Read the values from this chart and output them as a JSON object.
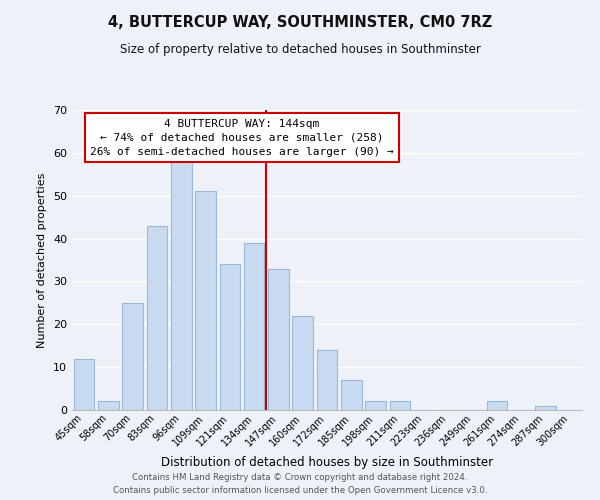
{
  "title": "4, BUTTERCUP WAY, SOUTHMINSTER, CM0 7RZ",
  "subtitle": "Size of property relative to detached houses in Southminster",
  "xlabel": "Distribution of detached houses by size in Southminster",
  "ylabel": "Number of detached properties",
  "bar_color": "#c8daf0",
  "bar_edge_color": "#9ab8d8",
  "categories": [
    "45sqm",
    "58sqm",
    "70sqm",
    "83sqm",
    "96sqm",
    "109sqm",
    "121sqm",
    "134sqm",
    "147sqm",
    "160sqm",
    "172sqm",
    "185sqm",
    "198sqm",
    "211sqm",
    "223sqm",
    "236sqm",
    "249sqm",
    "261sqm",
    "274sqm",
    "287sqm",
    "300sqm"
  ],
  "values": [
    12,
    2,
    25,
    43,
    58,
    51,
    34,
    39,
    33,
    22,
    14,
    7,
    2,
    2,
    0,
    0,
    0,
    2,
    0,
    1,
    0
  ],
  "vline_color": "#cc0000",
  "annotation_title": "4 BUTTERCUP WAY: 144sqm",
  "annotation_line1": "← 74% of detached houses are smaller (258)",
  "annotation_line2": "26% of semi-detached houses are larger (90) →",
  "annotation_box_color": "#ffffff",
  "annotation_box_edge": "#cc0000",
  "ylim": [
    0,
    70
  ],
  "yticks": [
    0,
    10,
    20,
    30,
    40,
    50,
    60,
    70
  ],
  "footer1": "Contains HM Land Registry data © Crown copyright and database right 2024.",
  "footer2": "Contains public sector information licensed under the Open Government Licence v3.0.",
  "background_color": "#eef2f8"
}
